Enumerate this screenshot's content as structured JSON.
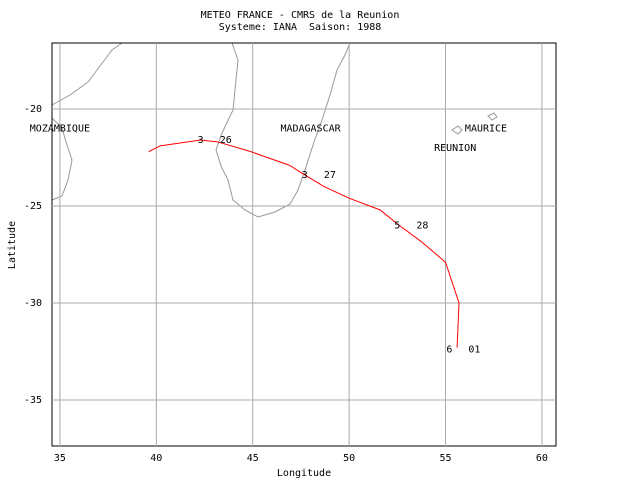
{
  "chart_data": {
    "type": "line",
    "title": "METEO FRANCE - CMRS de la Reunion",
    "subtitle": "Systeme: IANA  Saison: 1988",
    "x_label": "Longitude",
    "y_label": "Latitude",
    "x": [
      39.6,
      40.2,
      42.3,
      43.2,
      44.9,
      46.9,
      47.7,
      48.7,
      50.0,
      51.6,
      52.6,
      53.7,
      55.0,
      55.7,
      55.6
    ],
    "values": [
      -22.2,
      -21.9,
      -21.6,
      -21.7,
      -22.2,
      -22.9,
      -23.4,
      -24.0,
      -24.6,
      -25.2,
      -26.0,
      -26.8,
      -27.9,
      -30.0,
      -32.3
    ],
    "color": "#ff0000",
    "xlim": [
      34.59,
      60.73
    ],
    "ylim": [
      -37.37,
      -16.6
    ],
    "xticks": [
      35,
      40,
      45,
      50,
      55,
      60
    ],
    "yticks": [
      -20,
      -25,
      -30,
      -35
    ],
    "grid": true,
    "track_labels": [
      {
        "text": "3",
        "x": 42.3,
        "y": -21.6
      },
      {
        "text": "26",
        "x": 43.6,
        "y": -21.6
      },
      {
        "text": "3",
        "x": 47.7,
        "y": -23.4
      },
      {
        "text": "27",
        "x": 49.0,
        "y": -23.4
      },
      {
        "text": "5",
        "x": 52.5,
        "y": -26.0
      },
      {
        "text": "28",
        "x": 53.8,
        "y": -26.0
      },
      {
        "text": "6",
        "x": 55.2,
        "y": -32.4
      },
      {
        "text": "01",
        "x": 56.5,
        "y": -32.4
      }
    ],
    "places": [
      {
        "text": "MOZAMBIQUE",
        "x": 35.0,
        "y": -21.0
      },
      {
        "text": "MADAGASCAR",
        "x": 48.0,
        "y": -21.0
      },
      {
        "text": "MAURICE",
        "x": 57.1,
        "y": -21.0
      },
      {
        "text": "REUNION",
        "x": 55.5,
        "y": -22.0
      }
    ]
  }
}
